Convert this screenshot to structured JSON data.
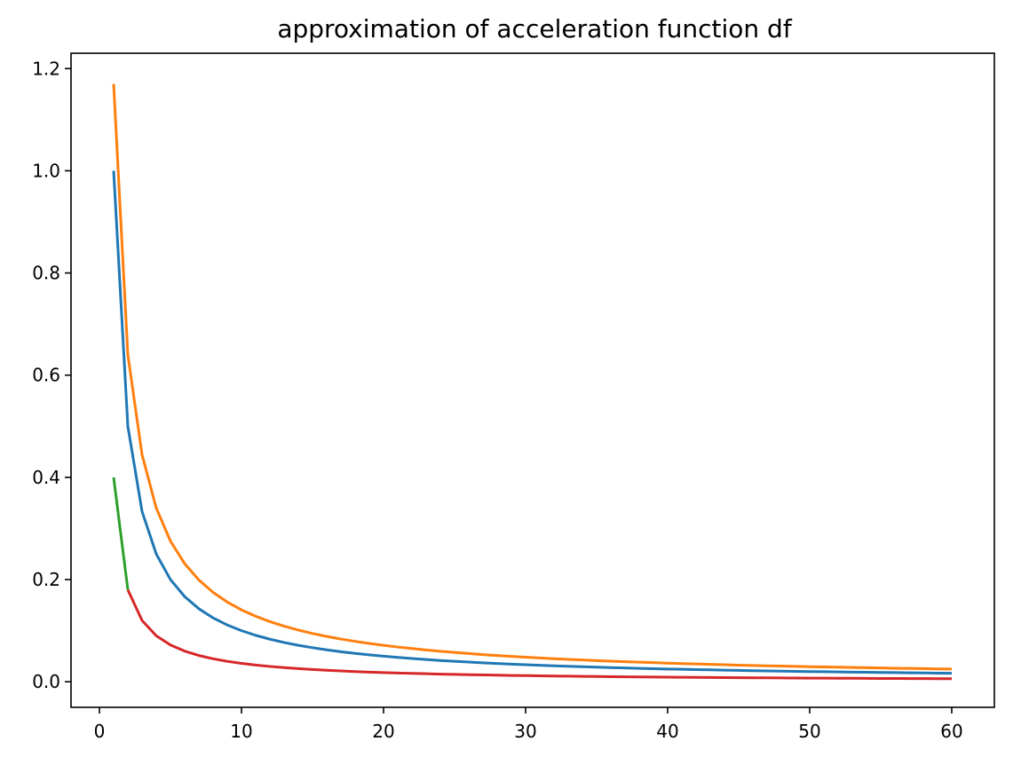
{
  "chart_data": {
    "type": "line",
    "title": "approximation of acceleration function df",
    "xlabel": "",
    "ylabel": "",
    "xlim": [
      -2,
      63
    ],
    "ylim": [
      -0.05,
      1.23
    ],
    "grid": false,
    "legend": "none",
    "x_ticks": [
      0,
      10,
      20,
      30,
      40,
      50,
      60
    ],
    "x_tick_labels": [
      "0",
      "10",
      "20",
      "30",
      "40",
      "50",
      "60"
    ],
    "y_ticks": [
      0.0,
      0.2,
      0.4,
      0.6,
      0.8,
      1.0,
      1.2
    ],
    "y_tick_labels": [
      "0.0",
      "0.2",
      "0.4",
      "0.6",
      "0.8",
      "1.0",
      "1.2"
    ],
    "series": [
      {
        "color": "#1f77b4",
        "x": [
          1,
          2,
          3,
          4,
          5,
          6,
          7,
          8,
          9,
          10,
          11,
          12,
          13,
          14,
          15,
          16,
          17,
          18,
          19,
          20,
          21,
          22,
          23,
          24,
          25,
          26,
          27,
          28,
          29,
          30,
          31,
          32,
          33,
          34,
          35,
          36,
          37,
          38,
          39,
          40,
          41,
          42,
          43,
          44,
          45,
          46,
          47,
          48,
          49,
          50,
          51,
          52,
          53,
          54,
          55,
          56,
          57,
          58,
          59,
          60
        ],
        "y": [
          1.0,
          0.5,
          0.3333,
          0.25,
          0.2,
          0.1667,
          0.1429,
          0.125,
          0.1111,
          0.1,
          0.0909,
          0.0833,
          0.0769,
          0.0714,
          0.0667,
          0.0625,
          0.0588,
          0.0556,
          0.0526,
          0.05,
          0.0476,
          0.0455,
          0.0435,
          0.0417,
          0.04,
          0.0385,
          0.037,
          0.0357,
          0.0345,
          0.0333,
          0.0323,
          0.0313,
          0.0303,
          0.0294,
          0.0286,
          0.0278,
          0.027,
          0.0263,
          0.0256,
          0.025,
          0.0244,
          0.0238,
          0.0233,
          0.0227,
          0.0222,
          0.0217,
          0.0213,
          0.0208,
          0.0204,
          0.02,
          0.0196,
          0.0192,
          0.0189,
          0.0185,
          0.0182,
          0.0179,
          0.0175,
          0.0172,
          0.0169,
          0.0167
        ]
      },
      {
        "color": "#ff7f0e",
        "x": [
          1,
          2,
          3,
          4,
          5,
          6,
          7,
          8,
          9,
          10,
          11,
          12,
          13,
          14,
          15,
          16,
          17,
          18,
          19,
          20,
          21,
          22,
          23,
          24,
          25,
          26,
          27,
          28,
          29,
          30,
          31,
          32,
          33,
          34,
          35,
          36,
          37,
          38,
          39,
          40,
          41,
          42,
          43,
          44,
          45,
          46,
          47,
          48,
          49,
          50,
          51,
          52,
          53,
          54,
          55,
          56,
          57,
          58,
          59,
          60
        ],
        "y": [
          1.17,
          0.64,
          0.4444,
          0.34,
          0.2752,
          0.2311,
          0.1992,
          0.175,
          0.156,
          0.1407,
          0.1282,
          0.1177,
          0.1088,
          0.1012,
          0.0945,
          0.0887,
          0.0836,
          0.0791,
          0.075,
          0.0713,
          0.068,
          0.065,
          0.0622,
          0.0597,
          0.0574,
          0.0552,
          0.0532,
          0.0514,
          0.0497,
          0.0481,
          0.0466,
          0.0452,
          0.0438,
          0.0426,
          0.0414,
          0.0403,
          0.0393,
          0.0383,
          0.0374,
          0.0365,
          0.0356,
          0.0348,
          0.0341,
          0.0333,
          0.0326,
          0.0319,
          0.0313,
          0.0307,
          0.0301,
          0.0295,
          0.029,
          0.0285,
          0.028,
          0.0275,
          0.027,
          0.0265,
          0.0261,
          0.0257,
          0.0252,
          0.0248
        ]
      },
      {
        "color": "#2ca02c",
        "x": [
          1,
          2
        ],
        "y": [
          0.4,
          0.18
        ]
      },
      {
        "color": "#d62728",
        "x": [
          2,
          3,
          4,
          5,
          6,
          7,
          8,
          9,
          10,
          11,
          12,
          13,
          14,
          15,
          16,
          17,
          18,
          19,
          20,
          21,
          22,
          23,
          24,
          25,
          26,
          27,
          28,
          29,
          30,
          31,
          32,
          33,
          34,
          35,
          36,
          37,
          38,
          39,
          40,
          41,
          42,
          43,
          44,
          45,
          46,
          47,
          48,
          49,
          50,
          51,
          52,
          53,
          54,
          55,
          56,
          57,
          58,
          59,
          60
        ],
        "y": [
          0.18,
          0.12,
          0.09,
          0.072,
          0.06,
          0.0514,
          0.045,
          0.04,
          0.036,
          0.0327,
          0.03,
          0.0277,
          0.0257,
          0.024,
          0.0225,
          0.0212,
          0.02,
          0.0189,
          0.018,
          0.0171,
          0.0164,
          0.0157,
          0.015,
          0.0144,
          0.0138,
          0.0133,
          0.0129,
          0.0124,
          0.012,
          0.0116,
          0.0113,
          0.0109,
          0.0106,
          0.0103,
          0.01,
          0.0097,
          0.0095,
          0.0092,
          0.009,
          0.0088,
          0.0086,
          0.0084,
          0.0082,
          0.008,
          0.0078,
          0.0077,
          0.0075,
          0.0073,
          0.0072,
          0.0071,
          0.0069,
          0.0068,
          0.0067,
          0.0065,
          0.0064,
          0.0063,
          0.0062,
          0.0061,
          0.006
        ]
      }
    ]
  }
}
